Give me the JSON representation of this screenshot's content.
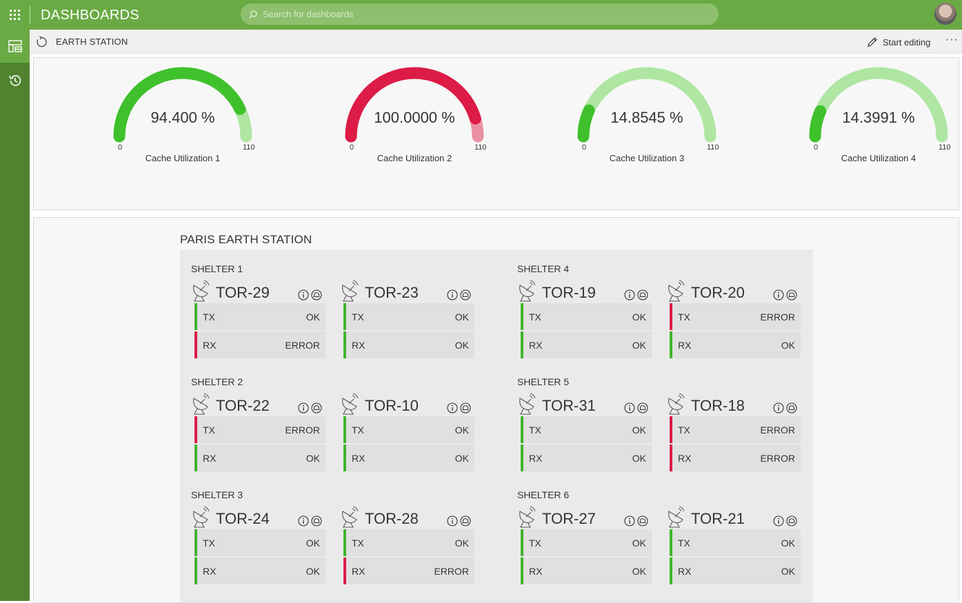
{
  "app": {
    "title": "DASHBOARDS",
    "search_placeholder": "Search for dashboards"
  },
  "subheader": {
    "title": "EARTH STATION",
    "start_editing": "Start editing",
    "more": "···"
  },
  "gauges": [
    {
      "value_text": "94.400 %",
      "value": 94.4,
      "min": "0",
      "max": "110",
      "label": "Cache Utilization 1",
      "color": "#3fc12c",
      "track_color": "#aee6a2"
    },
    {
      "value_text": "100.0000 %",
      "value": 100.0,
      "min": "0",
      "max": "110",
      "label": "Cache Utilization 2",
      "color": "#dc1b46",
      "track_color": "#eb8fa3"
    },
    {
      "value_text": "14.8545 %",
      "value": 14.8545,
      "min": "0",
      "max": "110",
      "label": "Cache Utilization 3",
      "color": "#3fc12c",
      "track_color": "#aee6a2"
    },
    {
      "value_text": "14.3991 %",
      "value": 14.3991,
      "min": "0",
      "max": "110",
      "label": "Cache Utilization 4",
      "color": "#3fc12c",
      "track_color": "#aee6a2"
    }
  ],
  "station": {
    "title": "PARIS EARTH STATION",
    "status_colors": {
      "OK": "#3fb52c",
      "ERROR": "#dc1b46"
    },
    "row_labels": {
      "tx": "TX",
      "rx": "RX"
    },
    "shelters": [
      {
        "name": "SHELTER 1",
        "devices": [
          {
            "name": "TOR-29",
            "tx": "OK",
            "rx": "ERROR"
          },
          {
            "name": "TOR-23",
            "tx": "OK",
            "rx": "OK"
          }
        ]
      },
      {
        "name": "SHELTER 2",
        "devices": [
          {
            "name": "TOR-22",
            "tx": "ERROR",
            "rx": "OK"
          },
          {
            "name": "TOR-10",
            "tx": "OK",
            "rx": "OK"
          }
        ]
      },
      {
        "name": "SHELTER 3",
        "devices": [
          {
            "name": "TOR-24",
            "tx": "OK",
            "rx": "OK"
          },
          {
            "name": "TOR-28",
            "tx": "OK",
            "rx": "ERROR"
          }
        ]
      },
      {
        "name": "SHELTER 4",
        "devices": [
          {
            "name": "TOR-19",
            "tx": "OK",
            "rx": "OK"
          },
          {
            "name": "TOR-20",
            "tx": "ERROR",
            "rx": "OK"
          }
        ]
      },
      {
        "name": "SHELTER 5",
        "devices": [
          {
            "name": "TOR-31",
            "tx": "OK",
            "rx": "OK"
          },
          {
            "name": "TOR-18",
            "tx": "ERROR",
            "rx": "ERROR"
          }
        ]
      },
      {
        "name": "SHELTER 6",
        "devices": [
          {
            "name": "TOR-27",
            "tx": "OK",
            "rx": "OK"
          },
          {
            "name": "TOR-21",
            "tx": "OK",
            "rx": "OK"
          }
        ]
      }
    ]
  }
}
